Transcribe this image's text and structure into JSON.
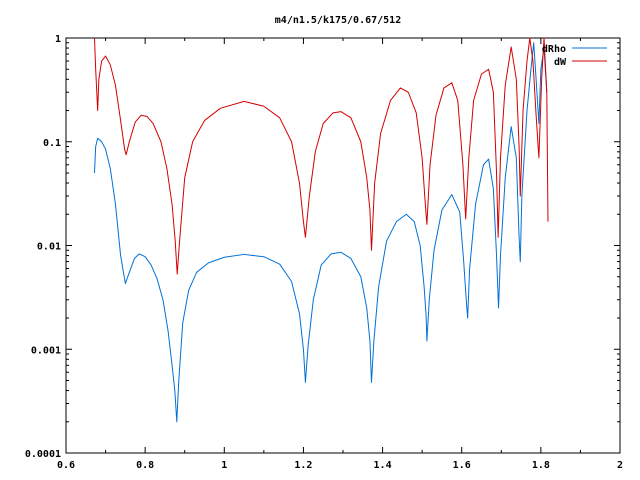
{
  "chart_data": {
    "type": "line",
    "title": "m4/n1.5/k175/0.67/512",
    "xlabel": "",
    "ylabel": "",
    "xlim": [
      0.6,
      2.0
    ],
    "ylim": [
      0.0001,
      1
    ],
    "y_scale": "log",
    "grid": false,
    "legend_position": "top-right",
    "x_tick_labels": [
      "0.6",
      "0.8",
      "1",
      "1.2",
      "1.4",
      "1.6",
      "1.8",
      "2"
    ],
    "x_ticks": [
      0.6,
      0.8,
      1.0,
      1.2,
      1.4,
      1.6,
      1.8,
      2.0
    ],
    "y_tick_labels": [
      "1",
      "0.1",
      "0.01",
      "0.001",
      "0.0001"
    ],
    "y_ticks": [
      1,
      0.1,
      0.01,
      0.001,
      0.0001
    ],
    "series": [
      {
        "name": "dRho",
        "color": "#0072d6",
        "points": [
          [
            0.672,
            0.05
          ],
          [
            0.675,
            0.09
          ],
          [
            0.68,
            0.108
          ],
          [
            0.69,
            0.1
          ],
          [
            0.7,
            0.085
          ],
          [
            0.712,
            0.055
          ],
          [
            0.725,
            0.025
          ],
          [
            0.738,
            0.008
          ],
          [
            0.75,
            0.0043
          ],
          [
            0.76,
            0.0055
          ],
          [
            0.773,
            0.0075
          ],
          [
            0.785,
            0.0083
          ],
          [
            0.8,
            0.0078
          ],
          [
            0.815,
            0.0065
          ],
          [
            0.83,
            0.0048
          ],
          [
            0.845,
            0.003
          ],
          [
            0.858,
            0.0015
          ],
          [
            0.868,
            0.0007
          ],
          [
            0.875,
            0.0004
          ],
          [
            0.88,
            0.0002
          ],
          [
            0.885,
            0.0005
          ],
          [
            0.895,
            0.0018
          ],
          [
            0.91,
            0.0037
          ],
          [
            0.93,
            0.0055
          ],
          [
            0.96,
            0.0068
          ],
          [
            1.0,
            0.0077
          ],
          [
            1.05,
            0.0082
          ],
          [
            1.1,
            0.0078
          ],
          [
            1.14,
            0.0066
          ],
          [
            1.17,
            0.0045
          ],
          [
            1.19,
            0.0022
          ],
          [
            1.2,
            0.001
          ],
          [
            1.205,
            0.00048
          ],
          [
            1.212,
            0.0011
          ],
          [
            1.225,
            0.003
          ],
          [
            1.245,
            0.0065
          ],
          [
            1.27,
            0.0083
          ],
          [
            1.295,
            0.0086
          ],
          [
            1.32,
            0.0075
          ],
          [
            1.345,
            0.005
          ],
          [
            1.36,
            0.0025
          ],
          [
            1.368,
            0.0012
          ],
          [
            1.372,
            0.00048
          ],
          [
            1.378,
            0.0012
          ],
          [
            1.39,
            0.004
          ],
          [
            1.41,
            0.011
          ],
          [
            1.435,
            0.017
          ],
          [
            1.46,
            0.02
          ],
          [
            1.48,
            0.017
          ],
          [
            1.495,
            0.01
          ],
          [
            1.505,
            0.004
          ],
          [
            1.51,
            0.0021
          ],
          [
            1.512,
            0.0012
          ],
          [
            1.518,
            0.003
          ],
          [
            1.53,
            0.009
          ],
          [
            1.55,
            0.022
          ],
          [
            1.575,
            0.031
          ],
          [
            1.595,
            0.021
          ],
          [
            1.605,
            0.007
          ],
          [
            1.612,
            0.0028
          ],
          [
            1.615,
            0.002
          ],
          [
            1.62,
            0.006
          ],
          [
            1.635,
            0.025
          ],
          [
            1.655,
            0.06
          ],
          [
            1.668,
            0.068
          ],
          [
            1.68,
            0.035
          ],
          [
            1.688,
            0.008
          ],
          [
            1.693,
            0.0025
          ],
          [
            1.698,
            0.008
          ],
          [
            1.71,
            0.045
          ],
          [
            1.725,
            0.14
          ],
          [
            1.738,
            0.07
          ],
          [
            1.745,
            0.012
          ],
          [
            1.748,
            0.007
          ],
          [
            1.752,
            0.03
          ],
          [
            1.765,
            0.2
          ],
          [
            1.775,
            0.5
          ],
          [
            1.782,
            0.9
          ],
          [
            1.788,
            0.4
          ],
          [
            1.795,
            0.15
          ],
          [
            1.8,
            0.5
          ],
          [
            1.808,
            0.8
          ],
          [
            1.815,
            0.3
          ]
        ]
      },
      {
        "name": "dW",
        "color": "#d40000",
        "points": [
          [
            0.672,
            1.0
          ],
          [
            0.675,
            0.5
          ],
          [
            0.68,
            0.2
          ],
          [
            0.683,
            0.4
          ],
          [
            0.69,
            0.6
          ],
          [
            0.7,
            0.67
          ],
          [
            0.712,
            0.55
          ],
          [
            0.725,
            0.35
          ],
          [
            0.738,
            0.16
          ],
          [
            0.748,
            0.085
          ],
          [
            0.752,
            0.075
          ],
          [
            0.76,
            0.1
          ],
          [
            0.775,
            0.155
          ],
          [
            0.79,
            0.18
          ],
          [
            0.805,
            0.175
          ],
          [
            0.82,
            0.15
          ],
          [
            0.84,
            0.1
          ],
          [
            0.855,
            0.055
          ],
          [
            0.868,
            0.025
          ],
          [
            0.876,
            0.011
          ],
          [
            0.881,
            0.0053
          ],
          [
            0.887,
            0.011
          ],
          [
            0.9,
            0.045
          ],
          [
            0.92,
            0.1
          ],
          [
            0.95,
            0.16
          ],
          [
            0.99,
            0.21
          ],
          [
            1.05,
            0.245
          ],
          [
            1.1,
            0.22
          ],
          [
            1.14,
            0.17
          ],
          [
            1.17,
            0.1
          ],
          [
            1.19,
            0.04
          ],
          [
            1.2,
            0.017
          ],
          [
            1.205,
            0.012
          ],
          [
            1.215,
            0.03
          ],
          [
            1.23,
            0.08
          ],
          [
            1.25,
            0.15
          ],
          [
            1.275,
            0.19
          ],
          [
            1.295,
            0.195
          ],
          [
            1.32,
            0.17
          ],
          [
            1.345,
            0.1
          ],
          [
            1.36,
            0.045
          ],
          [
            1.368,
            0.022
          ],
          [
            1.372,
            0.009
          ],
          [
            1.38,
            0.04
          ],
          [
            1.395,
            0.12
          ],
          [
            1.42,
            0.25
          ],
          [
            1.445,
            0.33
          ],
          [
            1.465,
            0.3
          ],
          [
            1.485,
            0.19
          ],
          [
            1.5,
            0.07
          ],
          [
            1.508,
            0.025
          ],
          [
            1.512,
            0.016
          ],
          [
            1.52,
            0.06
          ],
          [
            1.535,
            0.18
          ],
          [
            1.555,
            0.33
          ],
          [
            1.575,
            0.37
          ],
          [
            1.59,
            0.25
          ],
          [
            1.603,
            0.06
          ],
          [
            1.61,
            0.018
          ],
          [
            1.618,
            0.07
          ],
          [
            1.63,
            0.25
          ],
          [
            1.65,
            0.45
          ],
          [
            1.668,
            0.5
          ],
          [
            1.68,
            0.3
          ],
          [
            1.688,
            0.05
          ],
          [
            1.692,
            0.012
          ],
          [
            1.698,
            0.07
          ],
          [
            1.71,
            0.35
          ],
          [
            1.725,
            0.82
          ],
          [
            1.738,
            0.4
          ],
          [
            1.745,
            0.09
          ],
          [
            1.748,
            0.03
          ],
          [
            1.755,
            0.2
          ],
          [
            1.765,
            0.6
          ],
          [
            1.772,
            1.0
          ],
          [
            1.78,
            0.6
          ],
          [
            1.788,
            0.18
          ],
          [
            1.795,
            0.07
          ],
          [
            1.802,
            0.4
          ],
          [
            1.808,
            1.0
          ],
          [
            1.815,
            0.3
          ],
          [
            1.818,
            0.017
          ]
        ]
      }
    ]
  }
}
